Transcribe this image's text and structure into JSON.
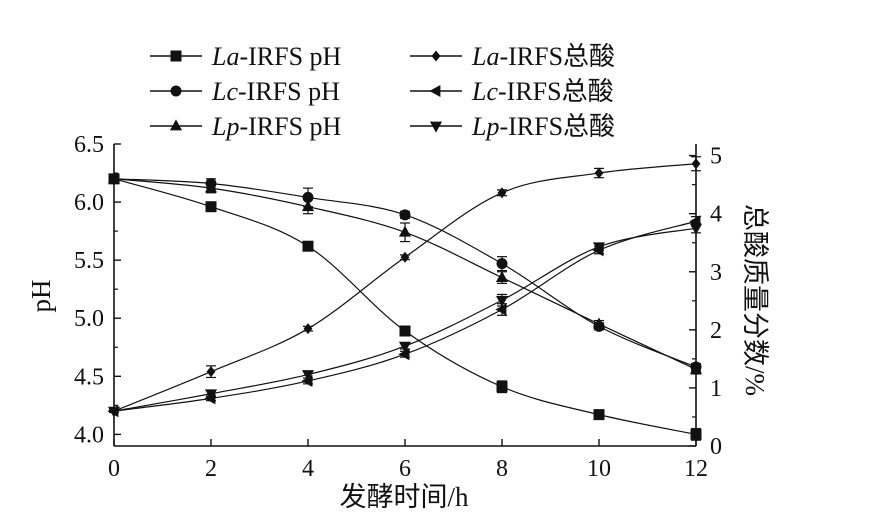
{
  "chart_data": {
    "type": "line",
    "xlabel": "发酵时间/h",
    "ylabel_left": "pH",
    "ylabel_right": "总酸质量分数/%",
    "x": [
      0,
      2,
      4,
      6,
      8,
      10,
      12
    ],
    "xlim": [
      0,
      12
    ],
    "x_ticks": [
      "0",
      "2",
      "4",
      "6",
      "8",
      "10",
      "12"
    ],
    "ylim_left": [
      3.9,
      6.5
    ],
    "y_ticks_left": [
      "4.0",
      "4.5",
      "5.0",
      "5.5",
      "6.0",
      "6.5"
    ],
    "ylim_right": [
      0,
      5.2
    ],
    "y_ticks_right": [
      "0",
      "1",
      "2",
      "3",
      "4",
      "5"
    ],
    "legend_position": "top",
    "series": [
      {
        "name_italic": "La",
        "name_rest": "-IRFS pH",
        "axis": "left",
        "marker": "square",
        "values": [
          6.2,
          5.96,
          5.62,
          4.89,
          4.41,
          4.17,
          4.0
        ],
        "errors": [
          0.02,
          0.03,
          0.02,
          0.02,
          0.05,
          0.03,
          0.05
        ]
      },
      {
        "name_italic": "Lc",
        "name_rest": "-IRFS pH",
        "axis": "left",
        "marker": "circle",
        "values": [
          6.2,
          6.16,
          6.04,
          5.89,
          5.47,
          4.93,
          4.58
        ],
        "errors": [
          0.02,
          0.04,
          0.08,
          0.03,
          0.06,
          0.03,
          0.03
        ]
      },
      {
        "name_italic": "Lp",
        "name_rest": "-IRFS pH",
        "axis": "left",
        "marker": "triangle-up",
        "values": [
          6.2,
          6.12,
          5.96,
          5.74,
          5.35,
          4.95,
          4.56
        ],
        "errors": [
          0.02,
          0.04,
          0.06,
          0.08,
          0.05,
          0.03,
          0.04
        ]
      },
      {
        "name_italic": "La",
        "name_rest": "-IRFS总酸",
        "axis": "right",
        "marker": "diamond",
        "values": [
          0.6,
          1.28,
          2.02,
          3.25,
          4.36,
          4.7,
          4.86
        ],
        "errors": [
          0.02,
          0.1,
          0.04,
          0.04,
          0.05,
          0.08,
          0.12
        ]
      },
      {
        "name_italic": "Lc",
        "name_rest": "-IRFS总酸",
        "axis": "right",
        "marker": "triangle-left",
        "values": [
          0.6,
          0.82,
          1.12,
          1.58,
          2.35,
          3.37,
          3.87
        ],
        "errors": [
          0.02,
          0.04,
          0.05,
          0.05,
          0.1,
          0.06,
          0.08
        ]
      },
      {
        "name_italic": "Lp",
        "name_rest": "-IRFS总酸",
        "axis": "right",
        "marker": "triangle-down",
        "values": [
          0.6,
          0.9,
          1.23,
          1.72,
          2.51,
          3.43,
          3.75
        ],
        "errors": [
          0.02,
          0.05,
          0.06,
          0.05,
          0.1,
          0.06,
          0.08
        ]
      }
    ]
  }
}
